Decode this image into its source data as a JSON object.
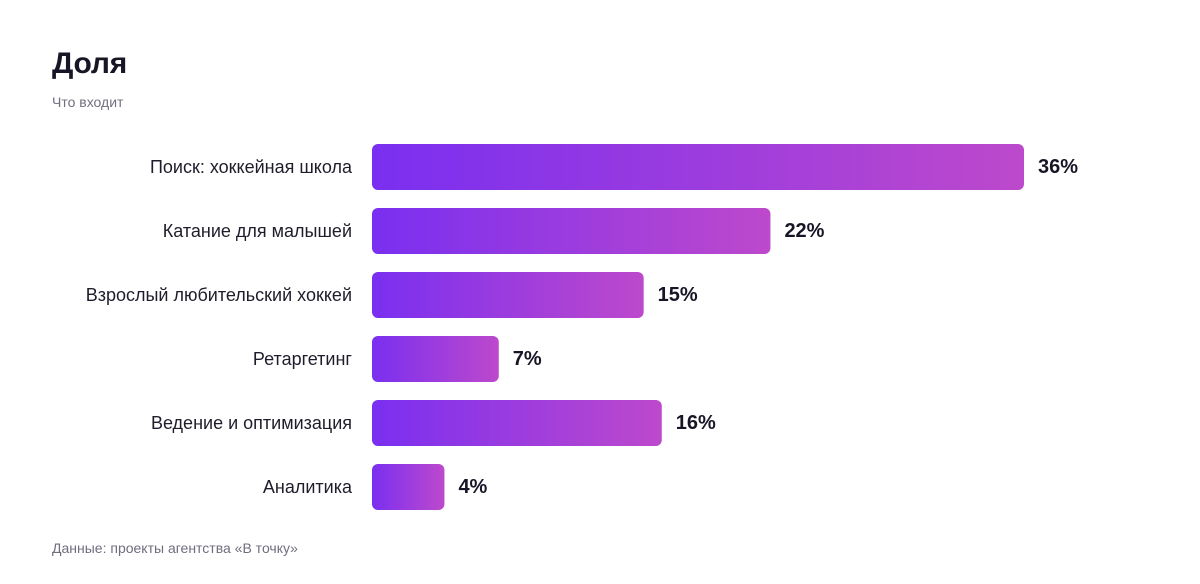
{
  "chart_data": {
    "type": "bar",
    "orientation": "horizontal",
    "title": "Доля",
    "subtitle": "Что входит",
    "source": "Данные: проекты агентства «В точку»",
    "categories": [
      "Поиск: хоккейная школа",
      "Катание для малышей",
      "Взрослый любительский хоккей",
      "Ретаргетинг",
      "Ведение и оптимизация",
      "Аналитика"
    ],
    "values": [
      36,
      22,
      15,
      7,
      16,
      4
    ],
    "value_labels": [
      "36%",
      "22%",
      "15%",
      "7%",
      "16%",
      "4%"
    ],
    "unit": "%",
    "xlim": [
      0,
      36
    ],
    "grid": false,
    "legend": "none",
    "colors": {
      "bar_start": "#7a2ff0",
      "bar_end": "#bd49cc",
      "text": "#1f1d2b",
      "muted": "#737080"
    }
  }
}
